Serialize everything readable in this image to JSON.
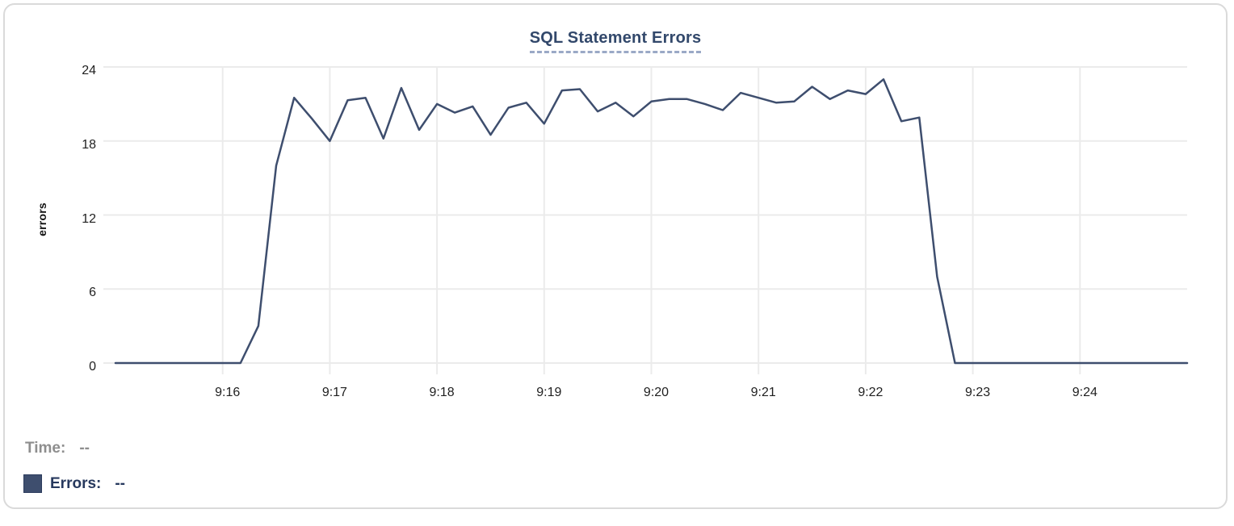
{
  "card": {
    "title": "SQL Statement Errors"
  },
  "tooltip": {
    "time_label": "Time:",
    "time_value": "--",
    "errors_label": "Errors:",
    "errors_value": "--"
  },
  "colors": {
    "line": "#3e4e6e",
    "legend_swatch": "#3e4e6e",
    "grid": "#ebebeb",
    "title": "#32486b",
    "title_underline": "#9aa9c6",
    "axis_text": "#1f1f1f",
    "time_text": "#8e8e8e",
    "errors_text": "#27395e",
    "card_border": "#dadada"
  },
  "chart_data": {
    "type": "line",
    "title": "SQL Statement Errors",
    "xlabel": "",
    "ylabel": "errors",
    "ylim": [
      0,
      24
    ],
    "yticks": [
      0,
      6,
      12,
      18,
      24
    ],
    "grid": true,
    "legend_position": "bottom-left",
    "x_start": "9:15:00",
    "x_end": "9:25:00",
    "x_step_seconds": 10,
    "xticks": [
      {
        "label": "9:16",
        "f": 0.1
      },
      {
        "label": "9:17",
        "f": 0.2
      },
      {
        "label": "9:18",
        "f": 0.3
      },
      {
        "label": "9:19",
        "f": 0.4
      },
      {
        "label": "9:20",
        "f": 0.5
      },
      {
        "label": "9:21",
        "f": 0.6
      },
      {
        "label": "9:22",
        "f": 0.7
      },
      {
        "label": "9:23",
        "f": 0.8
      },
      {
        "label": "9:24",
        "f": 0.9
      }
    ],
    "series": [
      {
        "name": "Errors",
        "color": "#3e4e6e",
        "values": [
          0,
          0,
          0,
          0,
          0,
          0,
          0,
          0,
          3,
          16,
          21.5,
          19.8,
          18,
          21.3,
          21.5,
          18.2,
          22.3,
          18.9,
          21,
          20.3,
          20.8,
          18.5,
          20.7,
          21.1,
          19.4,
          22.1,
          22.2,
          20.4,
          21.1,
          20,
          21.2,
          21.4,
          21.4,
          21,
          20.5,
          21.9,
          21.5,
          21.1,
          21.2,
          22.4,
          21.4,
          22.1,
          21.8,
          23,
          19.6,
          19.9,
          7,
          0,
          0,
          0,
          0,
          0,
          0,
          0,
          0,
          0,
          0,
          0,
          0,
          0,
          0
        ]
      }
    ]
  }
}
